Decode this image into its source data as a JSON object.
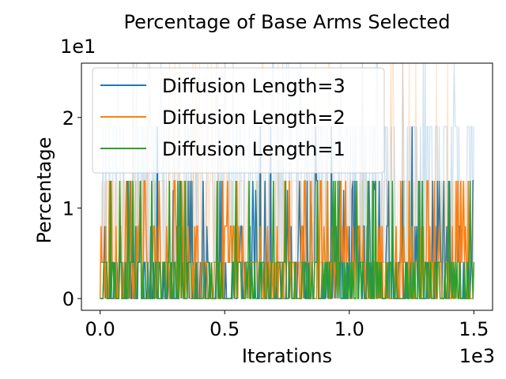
{
  "chart_data": {
    "type": "line",
    "title": "Percentage of Base Arms Selected",
    "xlabel": "Iterations",
    "ylabel": "Percentage",
    "x_offset_label": "1e3",
    "y_offset_label": "1e1",
    "xlim": [
      -0.075,
      1.575
    ],
    "ylim": [
      -0.13,
      2.6
    ],
    "x_ticks": [
      0.0,
      0.5,
      1.0,
      1.5
    ],
    "x_tick_labels": [
      "0.0",
      "0.5",
      "1.0",
      "1.5"
    ],
    "y_ticks": [
      0,
      1,
      2
    ],
    "y_tick_labels": [
      "0",
      "1",
      "2"
    ],
    "x_range": [
      0,
      1.5
    ],
    "observed_levels": [
      0,
      0.4,
      0.8,
      1.2,
      1.3,
      1.9,
      2.6
    ],
    "legend_position": "upper-left",
    "series": [
      {
        "name": "Diffusion Length=3",
        "color": "#1f77b4",
        "levels": [
          0,
          0.4,
          0.8,
          1.2,
          1.3,
          1.9,
          2.6
        ]
      },
      {
        "name": "Diffusion Length=2",
        "color": "#ff7f0e",
        "levels": [
          0,
          0.4,
          0.8,
          1.3,
          2.6
        ]
      },
      {
        "name": "Diffusion Length=1",
        "color": "#2ca02c",
        "levels": [
          0,
          0.4,
          1.3
        ]
      }
    ]
  }
}
